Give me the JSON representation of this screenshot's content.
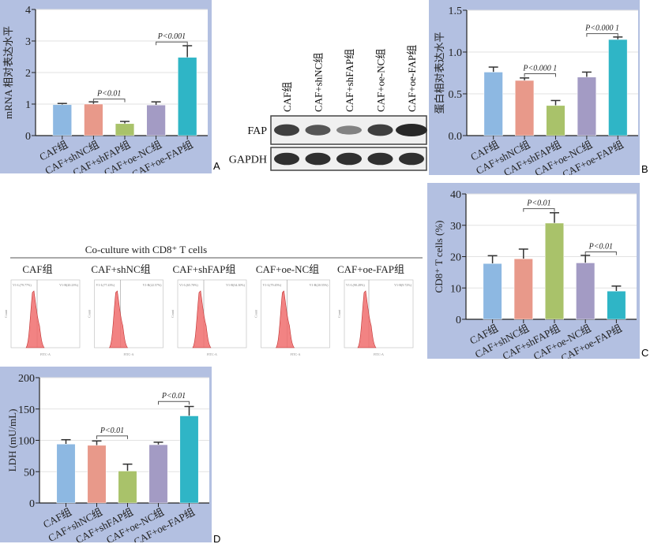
{
  "colors": {
    "panel_bg": "#b3c0e1",
    "bars": [
      "#8db8e2",
      "#e8998a",
      "#a9c26a",
      "#a39bc4",
      "#2fb5c6"
    ]
  },
  "chart_data": [
    {
      "id": "A",
      "panel_label": "A",
      "type": "bar",
      "categories": [
        "CAF组",
        "CAF+shNC组",
        "CAF+shFAP组",
        "CAF+oe-NC组",
        "CAF+oe-FAP组"
      ],
      "values": [
        0.98,
        1.0,
        0.38,
        0.97,
        2.48
      ],
      "error_upper": [
        1.02,
        1.07,
        0.45,
        1.07,
        2.85
      ],
      "ylabel": "mRNA 相对表达水平",
      "ylim": [
        0,
        4
      ],
      "yticks": [
        "0",
        "1",
        "2",
        "3",
        "4"
      ],
      "grid": true,
      "annotations": [
        {
          "from": 2,
          "to": 3,
          "y": 1.16,
          "text": "P<0.01"
        },
        {
          "from": 4,
          "to": 5,
          "y": 2.97,
          "text": "P<0.001"
        }
      ]
    },
    {
      "id": "B",
      "panel_label": "B",
      "type": "bar",
      "categories": [
        "CAF组",
        "CAF+shNC组",
        "CAF+shFAP组",
        "CAF+oe-NC组",
        "CAF+oe-FAP组"
      ],
      "values": [
        0.76,
        0.66,
        0.36,
        0.7,
        1.15
      ],
      "error_upper": [
        0.82,
        0.69,
        0.42,
        0.76,
        1.18
      ],
      "ylabel": "蛋白相对表达水平",
      "ylim": [
        0,
        1.5
      ],
      "yticks": [
        "0.0",
        "0.5",
        "1.0",
        "1.5"
      ],
      "grid": true,
      "annotations": [
        {
          "from": 2,
          "to": 3,
          "y": 0.74,
          "text": "P<0.000 1"
        },
        {
          "from": 4,
          "to": 5,
          "y": 1.22,
          "text": "P<0.000 1"
        }
      ]
    },
    {
      "id": "C",
      "panel_label": "C",
      "type": "bar",
      "categories": [
        "CAF组",
        "CAF+shNC组",
        "CAF+shFAP组",
        "CAF+oe-NC组",
        "CAF+oe-FAP组"
      ],
      "values": [
        17.8,
        19.3,
        30.7,
        18.0,
        9.0
      ],
      "error_upper": [
        20.3,
        22.4,
        34.0,
        20.4,
        10.6
      ],
      "ylabel": "CD8⁺ T cells (%)",
      "ylim": [
        0,
        40
      ],
      "yticks": [
        "0",
        "10",
        "20",
        "30",
        "40"
      ],
      "grid": true,
      "annotations": [
        {
          "from": 2,
          "to": 3,
          "y": 35.3,
          "text": "P<0.01"
        },
        {
          "from": 4,
          "to": 5,
          "y": 21.5,
          "text": "P<0.01"
        }
      ]
    },
    {
      "id": "D",
      "panel_label": "D",
      "type": "bar",
      "categories": [
        "CAF组",
        "CAF+shNC组",
        "CAF+shFAP组",
        "CAF+oe-NC组",
        "CAF+oe-FAP组"
      ],
      "values": [
        94,
        92,
        51,
        93,
        139
      ],
      "error_upper": [
        101,
        99,
        62,
        97,
        154
      ],
      "ylabel": "LDH (mU/mL)",
      "ylim": [
        0,
        200
      ],
      "yticks": [
        "0",
        "50",
        "100",
        "150",
        "200"
      ],
      "grid": true,
      "annotations": [
        {
          "from": 2,
          "to": 3,
          "y": 107,
          "text": "P<0.01"
        },
        {
          "from": 4,
          "to": 5,
          "y": 162,
          "text": "P<0.01"
        }
      ]
    }
  ],
  "western_blot": {
    "lanes": [
      "CAF组",
      "CAF+shNC组",
      "CAF+shFAP组",
      "CAF+oe-NC组",
      "CAF+oe-FAP组"
    ],
    "rows": [
      {
        "label": "FAP",
        "intensity": [
          0.85,
          0.7,
          0.4,
          0.85,
          1.0
        ]
      },
      {
        "label": "GAPDH",
        "intensity": [
          0.95,
          0.95,
          0.95,
          0.95,
          0.95
        ]
      }
    ]
  },
  "flow": {
    "title": "Co-culture with CD8⁺ T cells",
    "y_axis": "Count",
    "x_axis": "FITC-A",
    "panels": [
      {
        "title": "CAF组",
        "left": "V1-L(79.77%)",
        "right": "V1-R(20.23%)"
      },
      {
        "title": "CAF+shNC组",
        "left": "V1-L(77.43%)",
        "right": "V1-R(22.57%)"
      },
      {
        "title": "CAF+shFAP组",
        "left": "V1-L(65.70%)",
        "right": "V1-R(34.30%)"
      },
      {
        "title": "CAF+oe-NC组",
        "left": "V1-L(79.45%)",
        "right": "V1-R(20.55%)"
      },
      {
        "title": "CAF+oe-FAP组",
        "left": "V1-L(90.28%)",
        "right": "V1-R(9.72%)"
      }
    ]
  }
}
